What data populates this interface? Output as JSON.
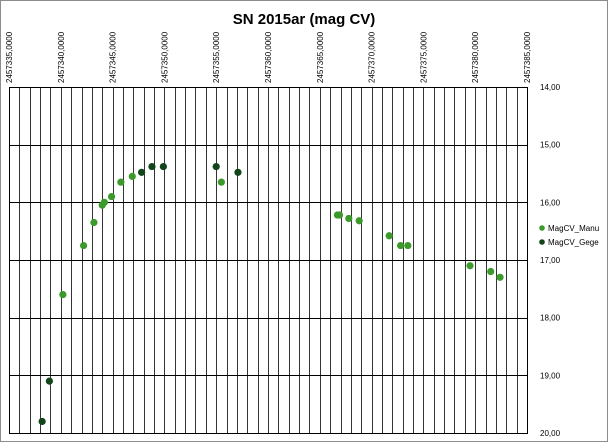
{
  "chart_data": {
    "type": "scatter",
    "title": "SN 2015ar (mag CV)",
    "xlabel": "",
    "ylabel": "",
    "xlim": [
      2457335,
      2457385
    ],
    "ylim": [
      14,
      20
    ],
    "y_inverted": true,
    "x_axis_position": "top",
    "y_axis_position": "right",
    "x_tick_labels": [
      "2457335,0000",
      "2457340,0000",
      "2457345,0000",
      "2457350,0000",
      "2457355,0000",
      "2457360,0000",
      "2457365,0000",
      "2457370,0000",
      "2457375,0000",
      "2457380,0000",
      "2457385,0000"
    ],
    "x_ticks": [
      2457335,
      2457340,
      2457345,
      2457350,
      2457355,
      2457360,
      2457365,
      2457370,
      2457375,
      2457380,
      2457385
    ],
    "y_tick_labels": [
      "14,00",
      "15,00",
      "16,00",
      "17,00",
      "18,00",
      "19,00",
      "20,00"
    ],
    "y_ticks": [
      14,
      15,
      16,
      17,
      18,
      19,
      20
    ],
    "x_minor_step": 1,
    "grid": true,
    "legend_position": "right",
    "series": [
      {
        "name": "MagCV_Manu",
        "color": "#3c9a2a",
        "x": [
          2457340.2,
          2457342.2,
          2457343.2,
          2457344.0,
          2457344.2,
          2457344.9,
          2457345.8,
          2457346.9,
          2457355.5,
          2457366.7,
          2457366.9,
          2457367.8,
          2457368.8,
          2457371.7,
          2457372.8,
          2457373.5,
          2457379.5,
          2457381.5,
          2457382.4
        ],
        "y": [
          17.6,
          16.75,
          16.35,
          16.05,
          16.0,
          15.9,
          15.65,
          15.55,
          15.65,
          16.22,
          16.22,
          16.28,
          16.32,
          16.58,
          16.75,
          16.75,
          17.1,
          17.2,
          17.3
        ]
      },
      {
        "name": "MagCV_Gege",
        "color": "#13451a",
        "x": [
          2457338.2,
          2457338.9,
          2457347.8,
          2457348.8,
          2457349.9,
          2457355.0,
          2457357.1
        ],
        "y": [
          19.8,
          19.1,
          15.48,
          15.38,
          15.38,
          15.38,
          15.48
        ]
      }
    ]
  }
}
